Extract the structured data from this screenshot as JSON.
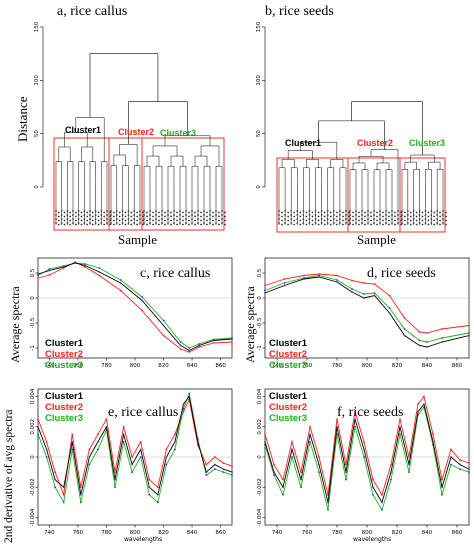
{
  "colors": {
    "cluster1": "#000000",
    "cluster2": "#ff2020",
    "cluster3": "#20b020",
    "box": "#e83030",
    "blue": "#2a3acc",
    "gray": "#bbbbbb"
  },
  "panels": {
    "a": {
      "title": "a, rice callus",
      "ylabel": "Distance",
      "xlabel": "Sample",
      "clusters": [
        "Cluster1",
        "Cluster2",
        "Cluster3"
      ]
    },
    "b": {
      "title": "b, rice seeds",
      "xlabel": "Sample",
      "clusters": [
        "Cluster1",
        "Cluster2",
        "Cluster3"
      ]
    },
    "c": {
      "title": "c, rice callus",
      "ylabel": "Average spectra",
      "legend": [
        "Cluster1",
        "Cluster2",
        "Cluster3"
      ]
    },
    "d": {
      "title": "d, rice seeds",
      "ylabel": "Average spectra",
      "legend": [
        "Cluster1",
        "Cluster2",
        "Cluster3"
      ]
    },
    "e": {
      "title": "e, rice callus",
      "ylabel": "2nd derivative of avg spectra",
      "legend": [
        "Cluster1",
        "Cluster2",
        "Cluster3"
      ],
      "xlabel": "wavelengths"
    },
    "f": {
      "title": "f, rice seeds",
      "legend": [
        "Cluster1",
        "Cluster2",
        "Cluster3"
      ],
      "xlabel": "wavelengths"
    }
  },
  "chart_data": [
    {
      "id": "a",
      "type": "dendrogram",
      "ylim": [
        0,
        150
      ],
      "yticks": [
        0,
        50,
        100,
        150
      ],
      "root_height": 125,
      "groups": [
        {
          "name": "Cluster1",
          "height": 65
        },
        {
          "name": "Cluster2",
          "height": 40
        },
        {
          "name": "Cluster3",
          "height": 48
        }
      ]
    },
    {
      "id": "b",
      "type": "dendrogram",
      "ylim": [
        0,
        150
      ],
      "yticks": [
        0,
        50,
        100,
        150
      ],
      "root_height": 80,
      "groups": [
        {
          "name": "Cluster1",
          "height": 42
        },
        {
          "name": "Cluster2",
          "height": 35
        },
        {
          "name": "Cluster3",
          "height": 30
        }
      ]
    },
    {
      "id": "c",
      "type": "line",
      "xlim": [
        732,
        868
      ],
      "ylim": [
        -1.2,
        0.8
      ],
      "xticks": [
        740,
        760,
        780,
        800,
        820,
        840,
        860
      ],
      "yticks": [
        -1.0,
        -0.5,
        0.0,
        0.5
      ],
      "x": [
        732,
        740,
        750,
        758,
        765,
        775,
        790,
        805,
        820,
        832,
        838,
        845,
        855,
        868
      ],
      "series": [
        {
          "name": "Cluster1",
          "values": [
            0.48,
            0.55,
            0.62,
            0.7,
            0.65,
            0.52,
            0.3,
            -0.05,
            -0.55,
            -0.95,
            -1.05,
            -0.95,
            -0.85,
            -0.82
          ]
        },
        {
          "name": "Cluster2",
          "values": [
            0.4,
            0.46,
            0.6,
            0.72,
            0.62,
            0.45,
            0.15,
            -0.25,
            -0.75,
            -1.02,
            -1.08,
            -0.98,
            -0.9,
            -0.88
          ]
        },
        {
          "name": "Cluster3",
          "values": [
            0.45,
            0.58,
            0.64,
            0.7,
            0.68,
            0.6,
            0.36,
            0.02,
            -0.45,
            -0.88,
            -1.0,
            -0.92,
            -0.83,
            -0.8
          ]
        }
      ]
    },
    {
      "id": "d",
      "type": "line",
      "xlim": [
        732,
        868
      ],
      "ylim": [
        -1.2,
        0.8
      ],
      "xticks": [
        740,
        760,
        780,
        800,
        820,
        840,
        860
      ],
      "yticks": [
        -1.0,
        -0.5,
        0.0,
        0.5
      ],
      "x": [
        732,
        745,
        758,
        768,
        780,
        790,
        798,
        805,
        815,
        825,
        835,
        840,
        850,
        868
      ],
      "series": [
        {
          "name": "Cluster1",
          "values": [
            0.1,
            0.25,
            0.38,
            0.42,
            0.32,
            0.12,
            0.0,
            0.05,
            -0.3,
            -0.75,
            -0.95,
            -0.98,
            -0.88,
            -0.75
          ]
        },
        {
          "name": "Cluster2",
          "values": [
            0.25,
            0.38,
            0.45,
            0.48,
            0.45,
            0.35,
            0.3,
            0.28,
            0.05,
            -0.4,
            -0.68,
            -0.7,
            -0.62,
            -0.55
          ]
        },
        {
          "name": "Cluster3",
          "values": [
            0.15,
            0.3,
            0.4,
            0.45,
            0.36,
            0.18,
            0.08,
            0.1,
            -0.2,
            -0.62,
            -0.85,
            -0.88,
            -0.8,
            -0.7
          ]
        }
      ]
    },
    {
      "id": "e",
      "type": "line",
      "xlim": [
        732,
        868
      ],
      "ylim": [
        -0.0045,
        0.0045
      ],
      "xticks": [
        740,
        760,
        780,
        800,
        820,
        840,
        860
      ],
      "yticks": [
        -0.004,
        -0.002,
        0.0,
        0.002,
        0.004
      ],
      "x": [
        732,
        738,
        744,
        750,
        756,
        762,
        768,
        774,
        780,
        786,
        792,
        798,
        804,
        810,
        816,
        822,
        828,
        834,
        838,
        844,
        850,
        856,
        862,
        868
      ],
      "series": [
        {
          "name": "Cluster1",
          "values": [
            0.002,
            0.0005,
            -0.0015,
            -0.002,
            0.001,
            -0.0025,
            0.0,
            0.001,
            0.002,
            -0.0015,
            0.0015,
            -0.0005,
            0.0005,
            -0.002,
            -0.0025,
            0.0,
            0.001,
            0.0035,
            0.004,
            0.001,
            -0.001,
            -0.0005,
            -0.0008,
            -0.001
          ]
        },
        {
          "name": "Cluster2",
          "values": [
            0.0025,
            0.001,
            -0.001,
            -0.0025,
            0.0015,
            -0.002,
            0.0005,
            0.0015,
            0.0025,
            -0.001,
            0.002,
            0.0,
            0.001,
            -0.0015,
            -0.002,
            0.0005,
            0.0015,
            0.003,
            0.0038,
            0.0008,
            -0.0005,
            0.0,
            -0.0004,
            -0.0006
          ]
        },
        {
          "name": "Cluster3",
          "values": [
            0.0015,
            0.0,
            -0.002,
            -0.003,
            0.0005,
            -0.003,
            -0.0005,
            0.0005,
            0.0018,
            -0.002,
            0.001,
            -0.001,
            0.0,
            -0.0025,
            -0.003,
            -0.0005,
            0.0005,
            0.0032,
            0.0042,
            0.0012,
            -0.0012,
            -0.0008,
            -0.001,
            -0.0012
          ]
        }
      ]
    },
    {
      "id": "f",
      "type": "line",
      "xlim": [
        732,
        868
      ],
      "ylim": [
        -0.0045,
        0.0045
      ],
      "xticks": [
        740,
        760,
        780,
        800,
        820,
        840,
        860
      ],
      "yticks": [
        -0.004,
        -0.002,
        0.0,
        0.002,
        0.004
      ],
      "x": [
        732,
        738,
        744,
        750,
        756,
        762,
        768,
        774,
        780,
        786,
        792,
        798,
        804,
        810,
        816,
        822,
        828,
        834,
        838,
        844,
        850,
        856,
        862,
        868
      ],
      "series": [
        {
          "name": "Cluster1",
          "values": [
            0.001,
            -0.001,
            -0.002,
            0.0005,
            -0.0015,
            0.0015,
            -0.0005,
            -0.003,
            0.002,
            -0.001,
            0.0025,
            0.0005,
            -0.002,
            -0.003,
            -0.001,
            0.002,
            -0.0005,
            0.003,
            0.0035,
            0.001,
            -0.002,
            0.0,
            -0.0005,
            -0.0008
          ]
        },
        {
          "name": "Cluster2",
          "values": [
            0.0015,
            -0.0005,
            -0.0015,
            0.001,
            -0.001,
            0.002,
            0.0,
            -0.0025,
            0.0025,
            -0.0005,
            0.003,
            0.001,
            -0.0015,
            -0.0025,
            -0.0005,
            0.0025,
            0.0,
            0.0035,
            0.004,
            0.0015,
            -0.0015,
            0.0005,
            -0.0002,
            -0.0004
          ]
        },
        {
          "name": "Cluster3",
          "values": [
            0.0008,
            -0.0012,
            -0.0025,
            0.0,
            -0.002,
            0.001,
            -0.001,
            -0.0035,
            0.0015,
            -0.0015,
            0.002,
            0.0,
            -0.0025,
            -0.0035,
            -0.0015,
            0.0015,
            -0.001,
            0.0028,
            0.0033,
            0.0008,
            -0.0025,
            -0.0005,
            -0.0008,
            -0.001
          ]
        }
      ]
    }
  ]
}
